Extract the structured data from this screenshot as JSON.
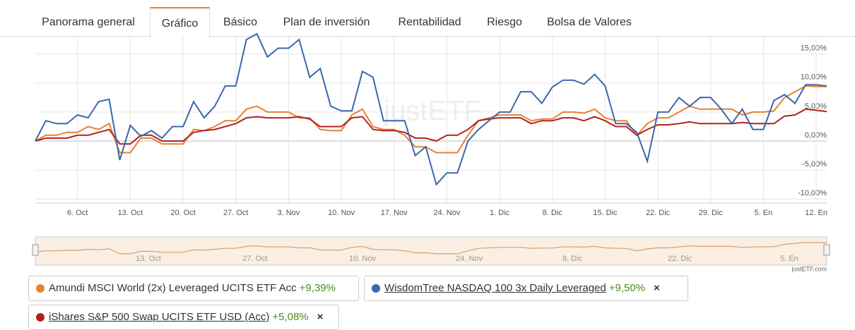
{
  "tabs": [
    "Panorama general",
    "Gráfico",
    "Básico",
    "Plan de inversión",
    "Rentabilidad",
    "Riesgo",
    "Bolsa de Valores"
  ],
  "chart_data": {
    "type": "line",
    "categories": [
      null,
      null,
      null,
      null,
      "6. Oct",
      null,
      null,
      null,
      null,
      "13. Oct",
      null,
      null,
      null,
      null,
      "20. Oct",
      null,
      null,
      null,
      null,
      "27. Oct",
      null,
      null,
      null,
      null,
      "3. Nov",
      null,
      null,
      null,
      null,
      "10. Nov",
      null,
      null,
      null,
      null,
      "17. Nov",
      null,
      null,
      null,
      null,
      "24. Nov",
      null,
      null,
      null,
      null,
      "1. Dic",
      null,
      null,
      null,
      null,
      "8. Dic",
      null,
      null,
      null,
      null,
      "15. Dic",
      null,
      null,
      null,
      null,
      "22. Dic",
      null,
      null,
      null,
      null,
      "29. Dic",
      null,
      null,
      null,
      null,
      "5. En",
      null,
      null,
      null,
      null,
      "12. En",
      null
    ],
    "series": [
      {
        "name": "Amundi MSCI World (2x) Leveraged UCITS ETF Acc",
        "color": "#e8822e",
        "values": [
          0,
          1,
          1,
          1.5,
          1.5,
          2.5,
          2,
          3,
          -2,
          -2,
          0.5,
          0.5,
          -0.5,
          -0.5,
          -0.5,
          2,
          1.8,
          2.5,
          3.5,
          3.5,
          5.5,
          6,
          5,
          5,
          5,
          4,
          4,
          2,
          1.8,
          1.8,
          4.5,
          5.5,
          2.5,
          2,
          2,
          1,
          -1,
          -1,
          -2,
          -2,
          -2,
          1,
          3.5,
          4,
          4.5,
          4.5,
          4.5,
          3.5,
          3.8,
          3.8,
          5,
          5,
          4.8,
          5.5,
          4,
          3.5,
          3.5,
          1,
          3,
          4,
          4,
          5,
          6,
          5.5,
          5.5,
          5.5,
          5.5,
          4.5,
          5,
          5,
          5.2,
          7.5,
          8.5,
          9.5,
          9.4,
          9.4
        ]
      },
      {
        "name": "WisdomTree NASDAQ 100 3x Daily Leveraged",
        "color": "#3a67ad",
        "values": [
          0,
          3.5,
          3,
          3,
          4.5,
          4,
          6.8,
          7.2,
          -3.3,
          2.7,
          0.8,
          1.8,
          0.5,
          2.5,
          2.5,
          6.8,
          4,
          6,
          9.5,
          9.5,
          17.5,
          18.5,
          14.5,
          16,
          16,
          17.5,
          11,
          12.5,
          6,
          5.2,
          5.2,
          12,
          11,
          3.5,
          3.5,
          3.5,
          -2.5,
          -1,
          -7.5,
          -5.5,
          -5.5,
          0,
          2,
          3.5,
          5,
          5,
          8.5,
          8.5,
          6.5,
          9.3,
          10.5,
          10.5,
          9.8,
          11.5,
          9.5,
          3,
          3,
          1.5,
          -3.5,
          5,
          5,
          7.5,
          6,
          7.5,
          7.5,
          5.5,
          3,
          5.5,
          2,
          2,
          7,
          8,
          6.5,
          9.7,
          9.7,
          9.5
        ]
      },
      {
        "name": "iShares S&P 500 Swap UCITS ETF USD (Acc)",
        "color": "#b0231d",
        "values": [
          0,
          0.5,
          0.5,
          0.5,
          1,
          1,
          1.5,
          2,
          -0.5,
          -0.5,
          1,
          1,
          0,
          0,
          0,
          1.5,
          1.8,
          2,
          2.5,
          3,
          4,
          4.2,
          4,
          4,
          4,
          4.2,
          3.8,
          2.5,
          2.5,
          2.5,
          4,
          4.2,
          2,
          1.8,
          1.8,
          1.5,
          0.5,
          0.5,
          0,
          1,
          1,
          2,
          3.5,
          3.8,
          4,
          4,
          4,
          3,
          3.5,
          3.5,
          4,
          4,
          3.5,
          4.2,
          3.5,
          2.5,
          2.5,
          1,
          2,
          2.8,
          2.8,
          3,
          3.3,
          3,
          3,
          3,
          3,
          3.2,
          3,
          3,
          3,
          4.3,
          4.5,
          5.5,
          5.3,
          5.1
        ]
      }
    ],
    "ylim": [
      -10.7,
      18
    ],
    "yticks": [
      {
        "value": -10,
        "label": "-10,00%"
      },
      {
        "value": -5,
        "label": "-5,00%"
      },
      {
        "value": 0,
        "label": "0,00%"
      },
      {
        "value": 5,
        "label": "5,00%"
      },
      {
        "value": 10,
        "label": "10,00%"
      },
      {
        "value": 15,
        "label": "15,00%"
      }
    ],
    "grid": true,
    "watermark": "justETF"
  },
  "navigator": {
    "labels": [
      "13. Oct",
      "27. Oct",
      "10. Nov",
      "24. Nov",
      "8. Dic",
      "22. Dic",
      "5. En"
    ],
    "credit": "justETF.com"
  },
  "legend": [
    {
      "change": "+9,39%"
    },
    {
      "change": "+9,50%",
      "close": "×"
    },
    {
      "change": "+5,08%",
      "close": "×"
    }
  ]
}
